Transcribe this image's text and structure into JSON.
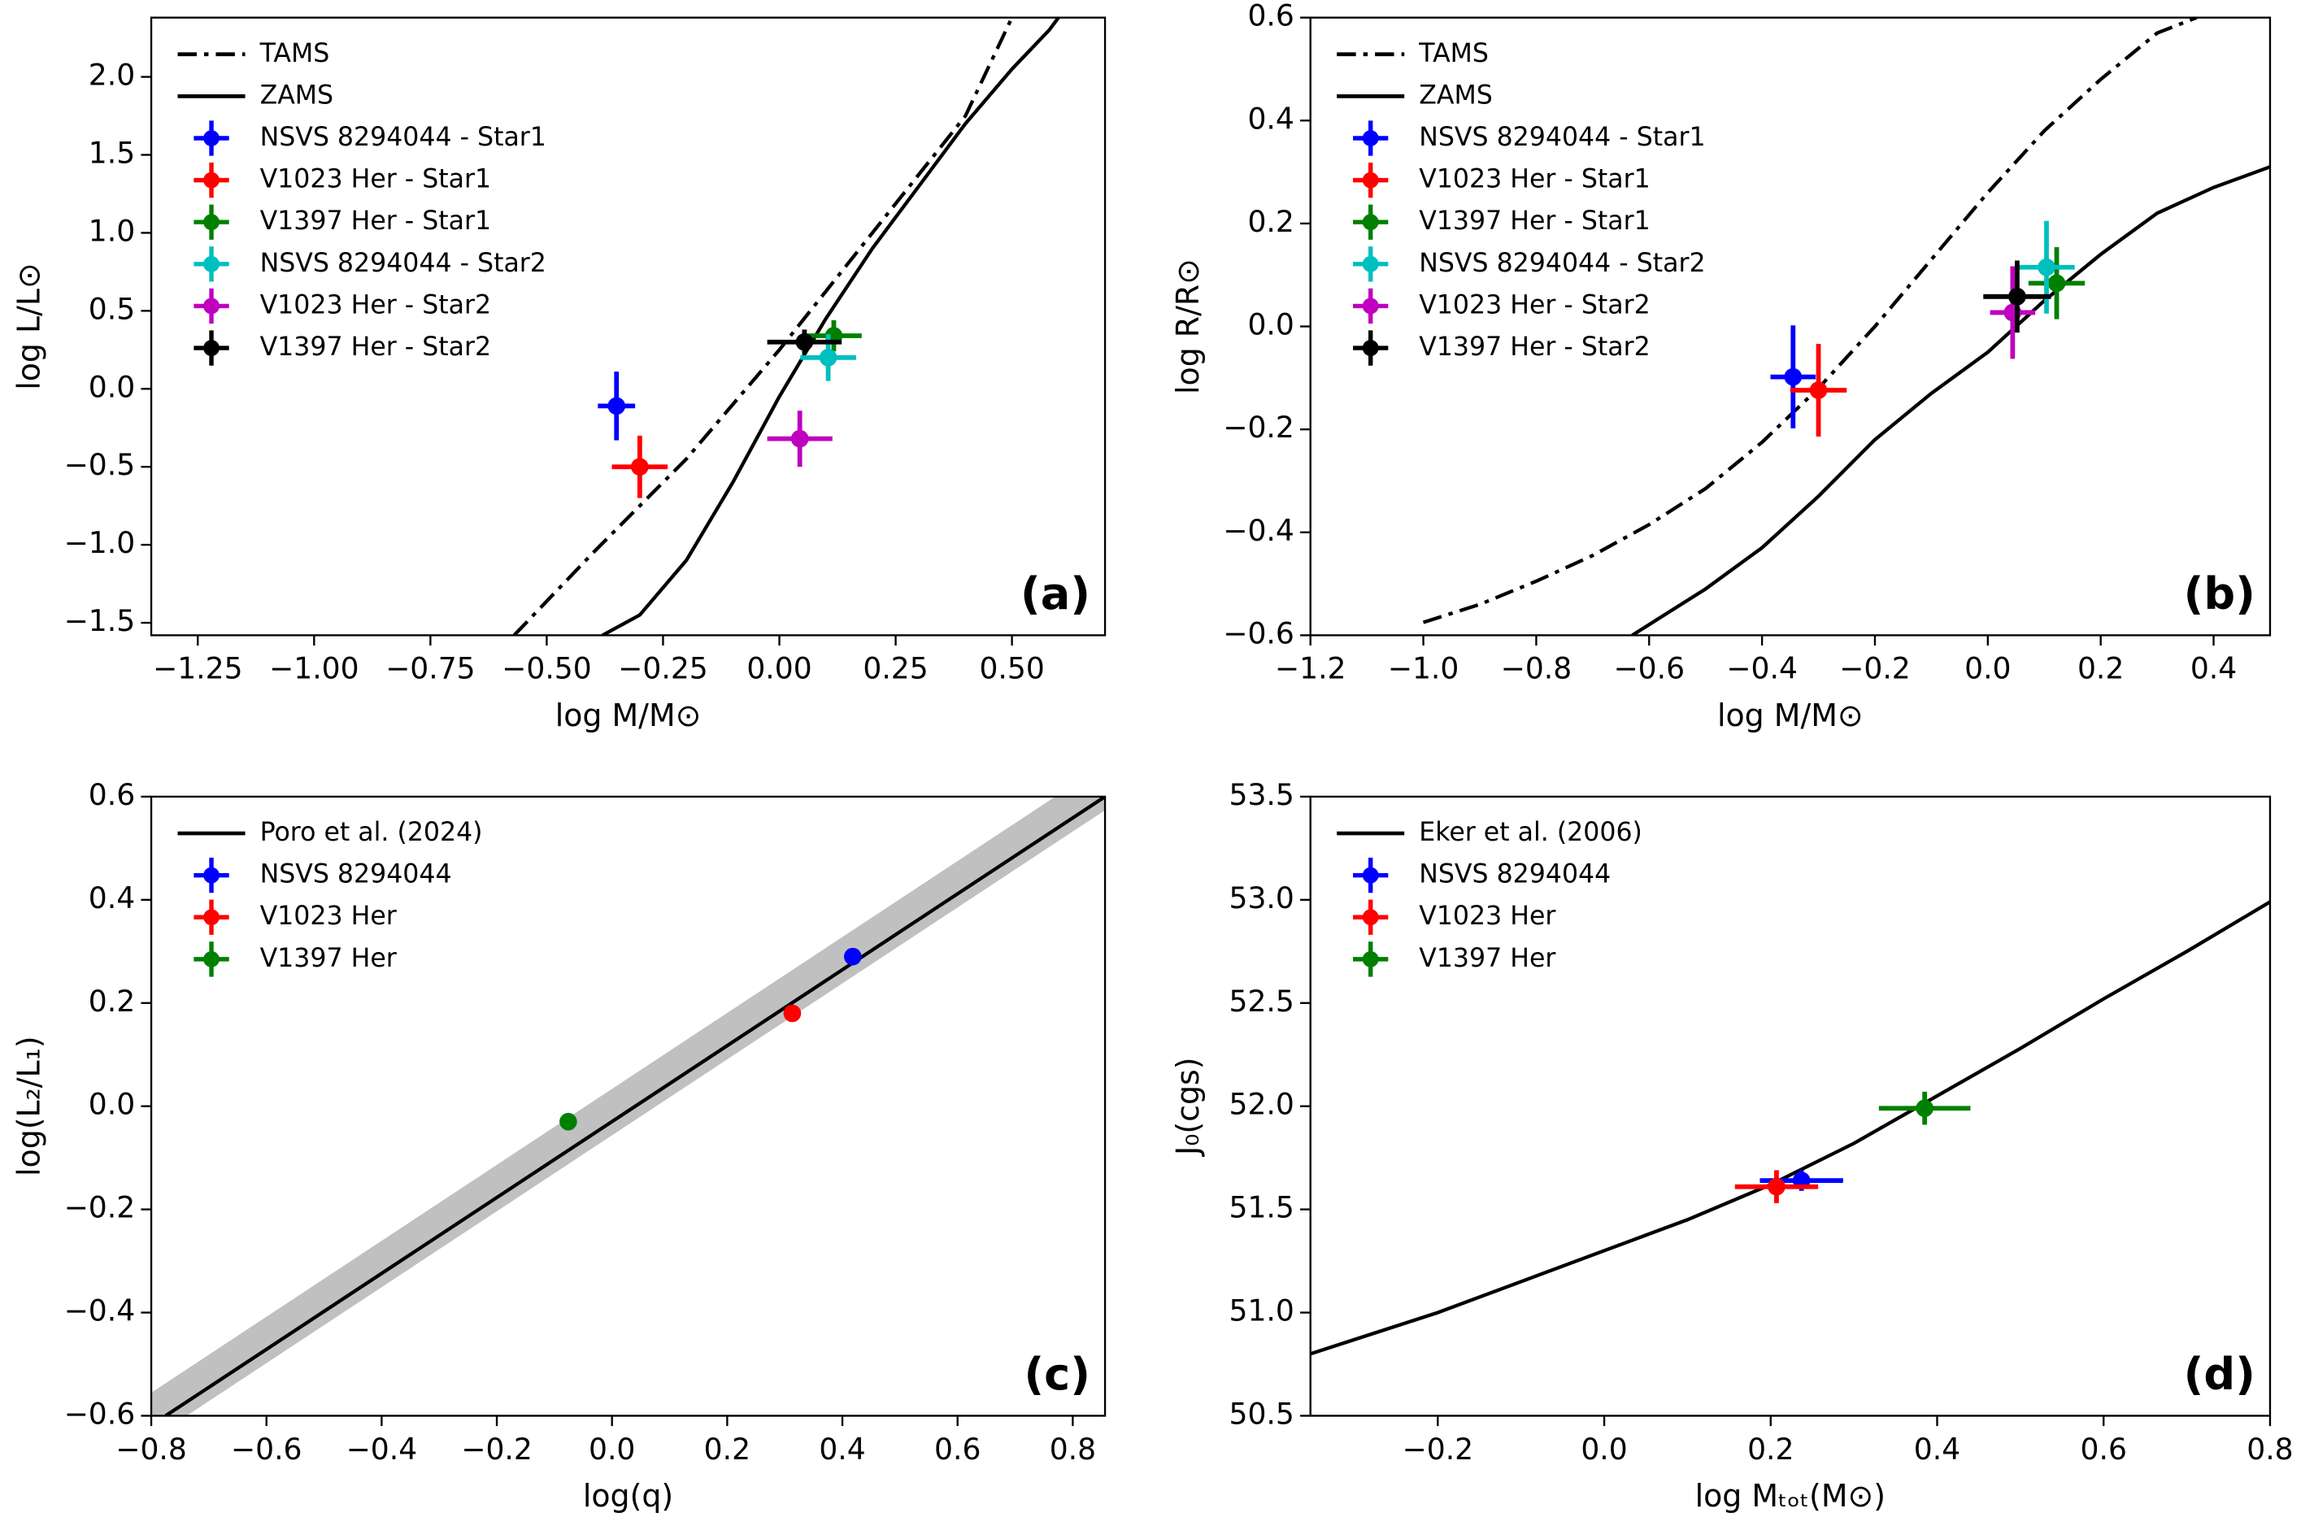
{
  "chart_data": [
    {
      "type": "errorbar-scatter",
      "panel_label": "(a)",
      "xlabel": "log M/M⊙",
      "ylabel": "log L/L⊙",
      "xlim": [
        -1.35,
        0.7
      ],
      "ylim": [
        -1.58,
        2.38
      ],
      "xticks": [
        {
          "value": -1.25,
          "label": "−1.25"
        },
        {
          "value": -1.0,
          "label": "−1.00"
        },
        {
          "value": -0.75,
          "label": "−0.75"
        },
        {
          "value": -0.5,
          "label": "−0.50"
        },
        {
          "value": -0.25,
          "label": "−0.25"
        },
        {
          "value": 0,
          "label": "0.00"
        },
        0.25,
        {
          "value": 0.5,
          "label": "0.50"
        }
      ],
      "yticks": [
        {
          "value": -1.5,
          "label": "−1.5"
        },
        {
          "value": -1.0,
          "label": "−1.0"
        },
        {
          "value": -0.5,
          "label": "−0.5"
        },
        {
          "value": 0,
          "label": "0.0"
        },
        0.5,
        {
          "value": 1.0,
          "label": "1.0"
        },
        1.5,
        {
          "value": 2.0,
          "label": "2.0"
        }
      ],
      "legend": "upper left",
      "lines": [
        {
          "name": "TAMS",
          "style": "dashdot",
          "color": "#000000",
          "x": [
            -0.57,
            -0.4,
            -0.2,
            0.0,
            0.2,
            0.4,
            0.5
          ],
          "y": [
            -1.58,
            -1.05,
            -0.45,
            0.25,
            1.0,
            1.75,
            2.38
          ]
        },
        {
          "name": "ZAMS",
          "style": "solid",
          "color": "#000000",
          "x": [
            -0.38,
            -0.3,
            -0.2,
            -0.1,
            0.0,
            0.1,
            0.2,
            0.3,
            0.4,
            0.5,
            0.58,
            0.6
          ],
          "y": [
            -1.58,
            -1.45,
            -1.1,
            -0.6,
            -0.05,
            0.45,
            0.9,
            1.3,
            1.7,
            2.05,
            2.3,
            2.38
          ]
        }
      ],
      "series": [
        {
          "name": "NSVS 8294044 - Star1",
          "color": "#0000ff",
          "x": [
            -0.35
          ],
          "y": [
            -0.11
          ],
          "xerr": [
            0.04
          ],
          "yerr": [
            0.22
          ]
        },
        {
          "name": "V1023 Her - Star1",
          "color": "#ff0000",
          "x": [
            -0.3
          ],
          "y": [
            -0.5
          ],
          "xerr": [
            0.06
          ],
          "yerr": [
            0.2
          ]
        },
        {
          "name": "V1397 Her - Star1",
          "color": "#008000",
          "x": [
            0.117
          ],
          "y": [
            0.34
          ],
          "xerr": [
            0.06
          ],
          "yerr": [
            0.1
          ]
        },
        {
          "name": "NSVS 8294044 - Star2",
          "color": "#00bfbf",
          "x": [
            0.105
          ],
          "y": [
            0.2
          ],
          "xerr": [
            0.06
          ],
          "yerr": [
            0.15
          ]
        },
        {
          "name": "V1023 Her - Star2",
          "color": "#bf00bf",
          "x": [
            0.044
          ],
          "y": [
            -0.32
          ],
          "xerr": [
            0.07
          ],
          "yerr": [
            0.18
          ]
        },
        {
          "name": "V1397 Her - Star2",
          "color": "#000000",
          "x": [
            0.054
          ],
          "y": [
            0.3
          ],
          "xerr": [
            0.08
          ],
          "yerr": [
            0.08
          ]
        }
      ]
    },
    {
      "type": "errorbar-scatter",
      "panel_label": "(b)",
      "xlabel": "log M/M⊙",
      "ylabel": "log R/R⊙",
      "xlim": [
        -1.2,
        0.5
      ],
      "ylim": [
        -0.6,
        0.6
      ],
      "xticks": [
        {
          "value": -1.2,
          "label": "−1.2"
        },
        {
          "value": -1.0,
          "label": "−1.0"
        },
        {
          "value": -0.8,
          "label": "−0.8"
        },
        {
          "value": -0.6,
          "label": "−0.6"
        },
        {
          "value": -0.4,
          "label": "−0.4"
        },
        {
          "value": -0.2,
          "label": "−0.2"
        },
        {
          "value": 0,
          "label": "0.0"
        },
        0.2,
        0.4
      ],
      "yticks": [
        {
          "value": -0.6,
          "label": "−0.6"
        },
        {
          "value": -0.4,
          "label": "−0.4"
        },
        {
          "value": -0.2,
          "label": "−0.2"
        },
        {
          "value": 0,
          "label": "0.0"
        },
        0.2,
        0.4,
        0.6
      ],
      "legend": "upper left",
      "lines": [
        {
          "name": "TAMS",
          "style": "dashdot",
          "color": "#000000",
          "x": [
            -1.0,
            -0.9,
            -0.8,
            -0.7,
            -0.6,
            -0.5,
            -0.4,
            -0.3,
            -0.2,
            -0.1,
            0.0,
            0.1,
            0.2,
            0.3,
            0.37
          ],
          "y": [
            -0.575,
            -0.54,
            -0.495,
            -0.445,
            -0.385,
            -0.315,
            -0.225,
            -0.12,
            0.0,
            0.13,
            0.26,
            0.38,
            0.48,
            0.57,
            0.6
          ]
        },
        {
          "name": "ZAMS",
          "style": "solid",
          "color": "#000000",
          "x": [
            -0.63,
            -0.5,
            -0.4,
            -0.3,
            -0.2,
            -0.1,
            0.0,
            0.1,
            0.2,
            0.3,
            0.4,
            0.5
          ],
          "y": [
            -0.6,
            -0.51,
            -0.43,
            -0.33,
            -0.22,
            -0.13,
            -0.05,
            0.05,
            0.14,
            0.22,
            0.27,
            0.31
          ]
        }
      ],
      "series": [
        {
          "name": "NSVS 8294044 - Star1",
          "color": "#0000ff",
          "x": [
            -0.345
          ],
          "y": [
            -0.098
          ],
          "xerr": [
            0.04
          ],
          "yerr": [
            0.1
          ]
        },
        {
          "name": "V1023 Her - Star1",
          "color": "#ff0000",
          "x": [
            -0.3
          ],
          "y": [
            -0.124
          ],
          "xerr": [
            0.05
          ],
          "yerr": [
            0.09
          ]
        },
        {
          "name": "V1397 Her - Star1",
          "color": "#008000",
          "x": [
            0.122
          ],
          "y": [
            0.084
          ],
          "xerr": [
            0.05
          ],
          "yerr": [
            0.07
          ]
        },
        {
          "name": "NSVS 8294044 - Star2",
          "color": "#00bfbf",
          "x": [
            0.104
          ],
          "y": [
            0.115
          ],
          "xerr": [
            0.05
          ],
          "yerr": [
            0.09
          ]
        },
        {
          "name": "V1023 Her - Star2",
          "color": "#bf00bf",
          "x": [
            0.044
          ],
          "y": [
            0.027
          ],
          "xerr": [
            0.04
          ],
          "yerr": [
            0.09
          ]
        },
        {
          "name": "V1397 Her - Star2",
          "color": "#000000",
          "x": [
            0.052
          ],
          "y": [
            0.058
          ],
          "xerr": [
            0.06
          ],
          "yerr": [
            0.07
          ]
        }
      ]
    },
    {
      "type": "errorbar-scatter",
      "panel_label": "(c)",
      "xlabel": "log(q)",
      "ylabel": "log(L₂/L₁)",
      "xlim": [
        -0.8,
        0.856
      ],
      "ylim": [
        -0.6,
        0.6
      ],
      "xticks": [
        {
          "value": -0.8,
          "label": "−0.8"
        },
        {
          "value": -0.6,
          "label": "−0.6"
        },
        {
          "value": -0.4,
          "label": "−0.4"
        },
        {
          "value": -0.2,
          "label": "−0.2"
        },
        {
          "value": 0,
          "label": "0.0"
        },
        0.2,
        0.4,
        0.6,
        0.8
      ],
      "yticks": [
        {
          "value": -0.6,
          "label": "−0.6"
        },
        {
          "value": -0.4,
          "label": "−0.4"
        },
        {
          "value": -0.2,
          "label": "−0.2"
        },
        {
          "value": 0,
          "label": "0.0"
        },
        0.2,
        0.4,
        0.6
      ],
      "legend": "upper left",
      "band": {
        "color": "#c0c0c0",
        "x": [
          -0.85,
          0.9
        ],
        "lower": [
          -0.682,
          0.606
        ],
        "upper": [
          -0.592,
          0.696
        ]
      },
      "lines": [
        {
          "name": "Poro et al. (2024)",
          "style": "solid",
          "color": "#000000",
          "x": [
            -0.775,
            0.856
          ],
          "y": [
            -0.6,
            0.6
          ]
        }
      ],
      "series": [
        {
          "name": "NSVS 8294044",
          "color": "#0000ff",
          "x": [
            0.418
          ],
          "y": [
            0.29
          ]
        },
        {
          "name": "V1023 Her",
          "color": "#ff0000",
          "x": [
            0.313
          ],
          "y": [
            0.18
          ]
        },
        {
          "name": "V1397 Her",
          "color": "#008000",
          "x": [
            -0.076
          ],
          "y": [
            -0.03
          ]
        }
      ]
    },
    {
      "type": "errorbar-scatter",
      "panel_label": "(d)",
      "xlabel": "log Mₜₒₜ(M⊙)",
      "ylabel": "J₀(cgs)",
      "xlim": [
        -0.353,
        0.8
      ],
      "ylim": [
        50.5,
        53.5
      ],
      "xticks": [
        {
          "value": -0.2,
          "label": "−0.2"
        },
        {
          "value": 0,
          "label": "0.0"
        },
        0.2,
        0.4,
        0.6,
        0.8
      ],
      "yticks": [
        50.5,
        {
          "value": 51.0,
          "label": "51.0"
        },
        51.5,
        {
          "value": 52.0,
          "label": "52.0"
        },
        52.5,
        {
          "value": 53.0,
          "label": "53.0"
        },
        53.5
      ],
      "legend": "upper left",
      "lines": [
        {
          "name": "Eker et al. (2006)",
          "style": "solid",
          "color": "#000000",
          "x": [
            -0.353,
            -0.2,
            -0.1,
            0.0,
            0.1,
            0.2,
            0.3,
            0.4,
            0.5,
            0.6,
            0.7,
            0.8
          ],
          "y": [
            50.8,
            51.0,
            51.15,
            51.3,
            51.45,
            51.62,
            51.82,
            52.05,
            52.28,
            52.52,
            52.75,
            52.99
          ]
        }
      ],
      "series": [
        {
          "name": "NSVS 8294044",
          "color": "#0000ff",
          "x": [
            0.237
          ],
          "y": [
            51.64
          ],
          "xerr": [
            0.05
          ],
          "yerr": [
            0.05
          ]
        },
        {
          "name": "V1023 Her",
          "color": "#ff0000",
          "x": [
            0.207
          ],
          "y": [
            51.61
          ],
          "xerr": [
            0.05
          ],
          "yerr": [
            0.08
          ]
        },
        {
          "name": "V1397 Her",
          "color": "#008000",
          "x": [
            0.385
          ],
          "y": [
            51.99
          ],
          "xerr": [
            0.055
          ],
          "yerr": [
            0.08
          ]
        }
      ]
    }
  ]
}
